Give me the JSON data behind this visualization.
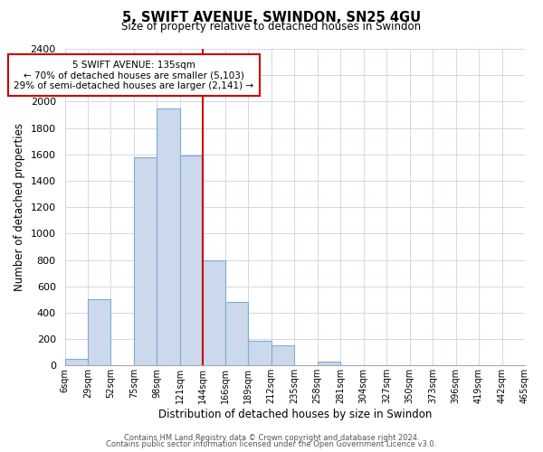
{
  "title": "5, SWIFT AVENUE, SWINDON, SN25 4GU",
  "subtitle": "Size of property relative to detached houses in Swindon",
  "xlabel": "Distribution of detached houses by size in Swindon",
  "ylabel": "Number of detached properties",
  "bin_labels": [
    "6sqm",
    "29sqm",
    "52sqm",
    "75sqm",
    "98sqm",
    "121sqm",
    "144sqm",
    "166sqm",
    "189sqm",
    "212sqm",
    "235sqm",
    "258sqm",
    "281sqm",
    "304sqm",
    "327sqm",
    "350sqm",
    "373sqm",
    "396sqm",
    "419sqm",
    "442sqm",
    "465sqm"
  ],
  "bar_heights": [
    50,
    500,
    0,
    1580,
    1950,
    1590,
    800,
    480,
    185,
    150,
    0,
    30,
    0,
    0,
    0,
    0,
    0,
    0,
    0,
    0
  ],
  "bar_color": "#ccd9ec",
  "bar_edge_color": "#7aadd4",
  "vline_x_index": 6,
  "vline_color": "#cc0000",
  "annotation_title": "5 SWIFT AVENUE: 135sqm",
  "annotation_line1": "← 70% of detached houses are smaller (5,103)",
  "annotation_line2": "29% of semi-detached houses are larger (2,141) →",
  "annotation_box_color": "#ffffff",
  "annotation_box_edge": "#cc0000",
  "ylim": [
    0,
    2400
  ],
  "yticks": [
    0,
    200,
    400,
    600,
    800,
    1000,
    1200,
    1400,
    1600,
    1800,
    2000,
    2200,
    2400
  ],
  "footer1": "Contains HM Land Registry data © Crown copyright and database right 2024.",
  "footer2": "Contains public sector information licensed under the Open Government Licence v3.0.",
  "bin_edges": [
    6,
    29,
    52,
    75,
    98,
    121,
    144,
    166,
    189,
    212,
    235,
    258,
    281,
    304,
    327,
    350,
    373,
    396,
    419,
    442,
    465
  ]
}
